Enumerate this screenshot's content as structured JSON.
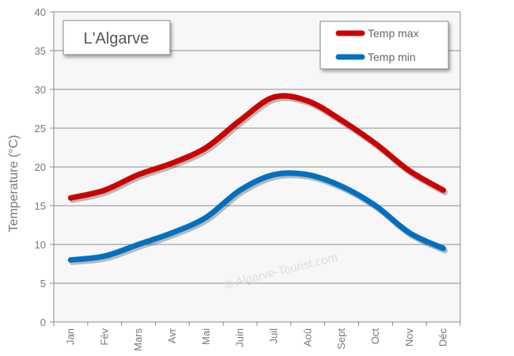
{
  "chart_data": {
    "type": "line",
    "title": "L'Algarve",
    "ylabel": "Temperature (°C)",
    "xlabel": "",
    "categories": [
      "Jan",
      "Fév",
      "Mars",
      "Avr",
      "Mai",
      "Juin",
      "Juil",
      "Aoû",
      "Sept",
      "Oct",
      "Nov",
      "Déc"
    ],
    "ylim": [
      0,
      40
    ],
    "yticks": [
      "0",
      "5",
      "10",
      "15",
      "20",
      "25",
      "30",
      "35",
      "40"
    ],
    "grid": true,
    "legend_position": "top-right",
    "series": [
      {
        "name": "Temp max",
        "color": "#cc0000",
        "values": [
          16,
          17,
          19,
          20.5,
          22.5,
          26,
          29,
          28.5,
          26,
          23,
          19.5,
          17
        ]
      },
      {
        "name": "Temp min",
        "color": "#0070c0",
        "values": [
          8,
          8.5,
          10,
          11.5,
          13.5,
          17,
          19,
          19,
          17.5,
          15,
          11.5,
          9.5
        ]
      }
    ],
    "watermark": "© Algarve-Tourist.com"
  }
}
